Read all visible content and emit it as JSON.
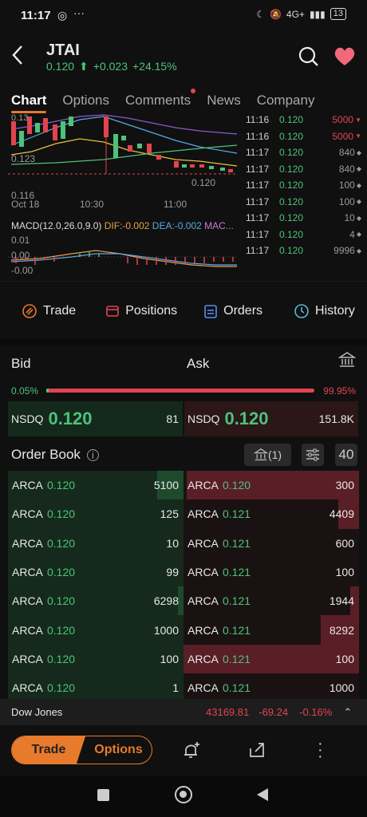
{
  "status": {
    "time": "11:17",
    "network": "4G+",
    "battery": "13"
  },
  "header": {
    "symbol": "JTAI",
    "price": "0.120",
    "change": "+0.023",
    "change_pct": "+24.15%"
  },
  "tabs": [
    {
      "label": "Chart",
      "active": true
    },
    {
      "label": "Options"
    },
    {
      "label": "Comments",
      "badge": true
    },
    {
      "label": "News"
    },
    {
      "label": "Company"
    }
  ],
  "chart": {
    "y_labels": [
      "0.13",
      "0.123",
      "0.116"
    ],
    "x_labels": [
      "Oct 18",
      "10:30",
      "11:00"
    ],
    "last_price_label": "0.120",
    "macd_label": "MACD(12.0,26.0,9.0)",
    "dif": "DIF:-0.002",
    "dea": "DEA:-0.002",
    "mac": "MAC...",
    "macd_y_labels": [
      "0.01",
      "0.00",
      "-0.00"
    ]
  },
  "trades": [
    {
      "time": "11:16",
      "price": "0.120",
      "vol": "5000",
      "dir": "down"
    },
    {
      "time": "11:16",
      "price": "0.120",
      "vol": "5000",
      "dir": "down"
    },
    {
      "time": "11:17",
      "price": "0.120",
      "vol": "840",
      "dir": "neutral"
    },
    {
      "time": "11:17",
      "price": "0.120",
      "vol": "840",
      "dir": "neutral"
    },
    {
      "time": "11:17",
      "price": "0.120",
      "vol": "100",
      "dir": "neutral"
    },
    {
      "time": "11:17",
      "price": "0.120",
      "vol": "100",
      "dir": "neutral"
    },
    {
      "time": "11:17",
      "price": "0.120",
      "vol": "10",
      "dir": "neutral"
    },
    {
      "time": "11:17",
      "price": "0.120",
      "vol": "4",
      "dir": "neutral"
    },
    {
      "time": "11:17",
      "price": "0.120",
      "vol": "9996",
      "dir": "neutral"
    }
  ],
  "actions": {
    "trade": "Trade",
    "positions": "Positions",
    "orders": "Orders",
    "history": "History"
  },
  "bidask": {
    "bid_label": "Bid",
    "ask_label": "Ask",
    "bid_pct": "0.05%",
    "ask_pct": "99.95%",
    "bid_fraction": 0.0005,
    "bid_exchange": "NSDQ",
    "bid_price": "0.120",
    "bid_size": "81",
    "ask_exchange": "NSDQ",
    "ask_price": "0.120",
    "ask_size": "151.8K"
  },
  "orderbook": {
    "title": "Order Book",
    "exchanges_label": "(1)",
    "depth": "40",
    "rows": [
      {
        "bex": "ARCA",
        "bp": "0.120",
        "bs": "5100",
        "bfill": 0.15,
        "aex": "ARCA",
        "ap": "0.120",
        "as": "300",
        "afill": 0.98
      },
      {
        "bex": "ARCA",
        "bp": "0.120",
        "bs": "125",
        "bfill": 0.0,
        "aex": "ARCA",
        "ap": "0.121",
        "as": "4409",
        "afill": 0.12
      },
      {
        "bex": "ARCA",
        "bp": "0.120",
        "bs": "10",
        "bfill": 0.0,
        "aex": "ARCA",
        "ap": "0.121",
        "as": "600",
        "afill": 0.0
      },
      {
        "bex": "ARCA",
        "bp": "0.120",
        "bs": "99",
        "bfill": 0.0,
        "aex": "ARCA",
        "ap": "0.121",
        "as": "100",
        "afill": 0.0
      },
      {
        "bex": "ARCA",
        "bp": "0.120",
        "bs": "6298",
        "bfill": 0.03,
        "aex": "ARCA",
        "ap": "0.121",
        "as": "1944",
        "afill": 0.05
      },
      {
        "bex": "ARCA",
        "bp": "0.120",
        "bs": "1000",
        "bfill": 0.0,
        "aex": "ARCA",
        "ap": "0.121",
        "as": "8292",
        "afill": 0.22
      },
      {
        "bex": "ARCA",
        "bp": "0.120",
        "bs": "100",
        "bfill": 0.0,
        "aex": "ARCA",
        "ap": "0.121",
        "as": "100",
        "afill": 1.0
      },
      {
        "bex": "ARCA",
        "bp": "0.120",
        "bs": "1",
        "bfill": 0.0,
        "aex": "ARCA",
        "ap": "0.121",
        "as": "1000",
        "afill": 0.0
      }
    ]
  },
  "ticker": {
    "name": "Dow Jones",
    "value": "43169.81",
    "change": "-69.24",
    "pct": "-0.16%"
  },
  "bottom": {
    "trade": "Trade",
    "options": "Options"
  }
}
